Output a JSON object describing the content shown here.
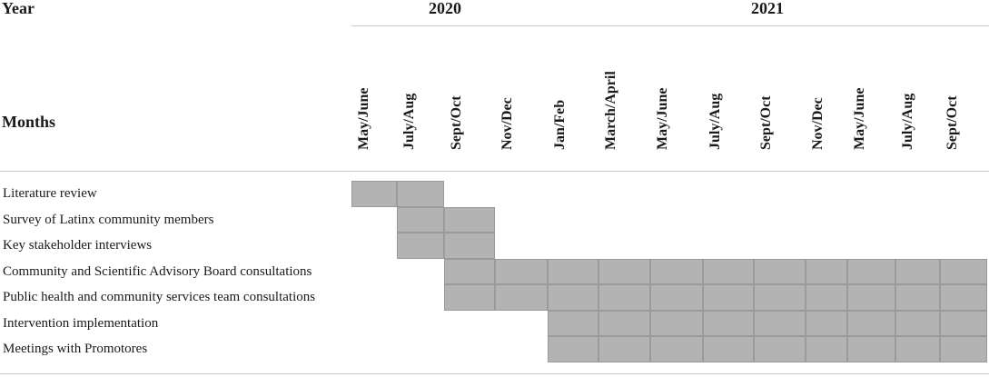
{
  "header": {
    "year_label": "Year",
    "months_label": "Months",
    "years": [
      "2020",
      "2021"
    ]
  },
  "months": [
    "May/June",
    "July/Aug",
    "Sept/Oct",
    "Nov/Dec",
    "Jan/Feb",
    "March/April",
    "May/June",
    "July/Aug",
    "Sept/Oct",
    "Nov/Dec",
    "May/June",
    "July/Aug",
    "Sept/Oct"
  ],
  "tasks": [
    {
      "label": "Literature review",
      "start": 0,
      "end": 1
    },
    {
      "label": "Survey of Latinx community members",
      "start": 1,
      "end": 2
    },
    {
      "label": "Key stakeholder interviews",
      "start": 1,
      "end": 2
    },
    {
      "label": "Community and Scientific Advisory Board consultations",
      "start": 2,
      "end": 12
    },
    {
      "label": "Public health and community services team consultations",
      "start": 2,
      "end": 12
    },
    {
      "label": "Intervention implementation",
      "start": 4,
      "end": 12
    },
    {
      "label": "Meetings with Promotores",
      "start": 4,
      "end": 12
    }
  ],
  "colors": {
    "cell_fill": "#b3b3b3",
    "rule": "#c8c8c8"
  }
}
